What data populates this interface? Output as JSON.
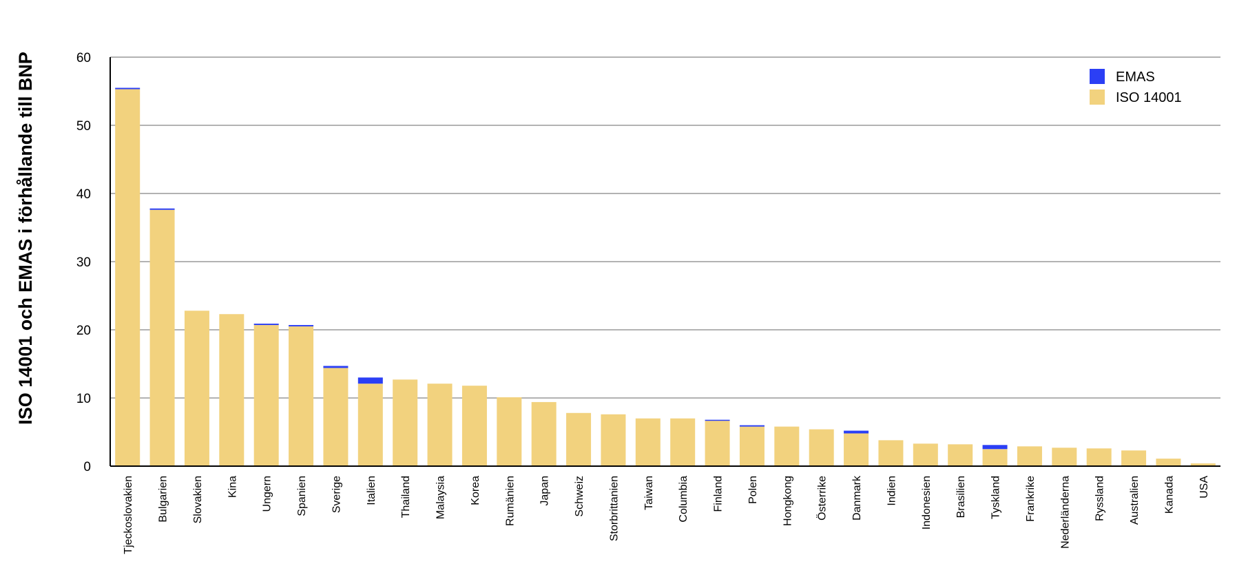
{
  "chart_data": {
    "type": "bar",
    "stacked": true,
    "title": "",
    "xlabel": "",
    "ylabel": "ISO 14001 och EMAS i förhållande till BNP",
    "ylim": [
      0,
      60
    ],
    "yticks": [
      0,
      10,
      20,
      30,
      40,
      50,
      60
    ],
    "grid": true,
    "legend_position": "top-right",
    "categories": [
      "Tjeckoslovakien",
      "Bulgarien",
      "Slovakien",
      "Kina",
      "Ungern",
      "Spanien",
      "Sverige",
      "Italien",
      "Thailand",
      "Malaysia",
      "Korea",
      "Rumänien",
      "Japan",
      "Schweiz",
      "Storbrittanien",
      "Taiwan",
      "Columbia",
      "Finland",
      "Polen",
      "Hongkong",
      "Österrike",
      "Danmark",
      "Indien",
      "Indonesien",
      "Brasilien",
      "Tyskland",
      "Frankrike",
      "Nederländerna",
      "Ryssland",
      "Australien",
      "Kanada",
      "USA"
    ],
    "series": [
      {
        "name": "ISO 14001",
        "color": "#F2D27E",
        "values": [
          55.3,
          37.6,
          22.8,
          22.3,
          20.7,
          20.5,
          14.4,
          12.1,
          12.7,
          12.1,
          11.8,
          10.1,
          9.4,
          7.8,
          7.6,
          7.0,
          7.0,
          6.7,
          5.8,
          5.8,
          5.4,
          4.8,
          3.8,
          3.3,
          3.2,
          2.5,
          2.9,
          2.7,
          2.6,
          2.3,
          1.1,
          0.4
        ]
      },
      {
        "name": "EMAS",
        "color": "#2B3FF5",
        "values": [
          0.2,
          0.2,
          0.0,
          0.0,
          0.2,
          0.2,
          0.3,
          0.9,
          0.0,
          0.0,
          0.0,
          0.0,
          0.0,
          0.0,
          0.0,
          0.0,
          0.0,
          0.1,
          0.2,
          0.0,
          0.0,
          0.4,
          0.0,
          0.0,
          0.0,
          0.6,
          0.0,
          0.0,
          0.0,
          0.0,
          0.0,
          0.0
        ]
      }
    ],
    "legend": [
      {
        "name": "EMAS",
        "color": "#2B3FF5"
      },
      {
        "name": "ISO 14001",
        "color": "#F2D27E"
      }
    ],
    "colors": {
      "grid": "#999999",
      "axis": "#000000"
    }
  }
}
